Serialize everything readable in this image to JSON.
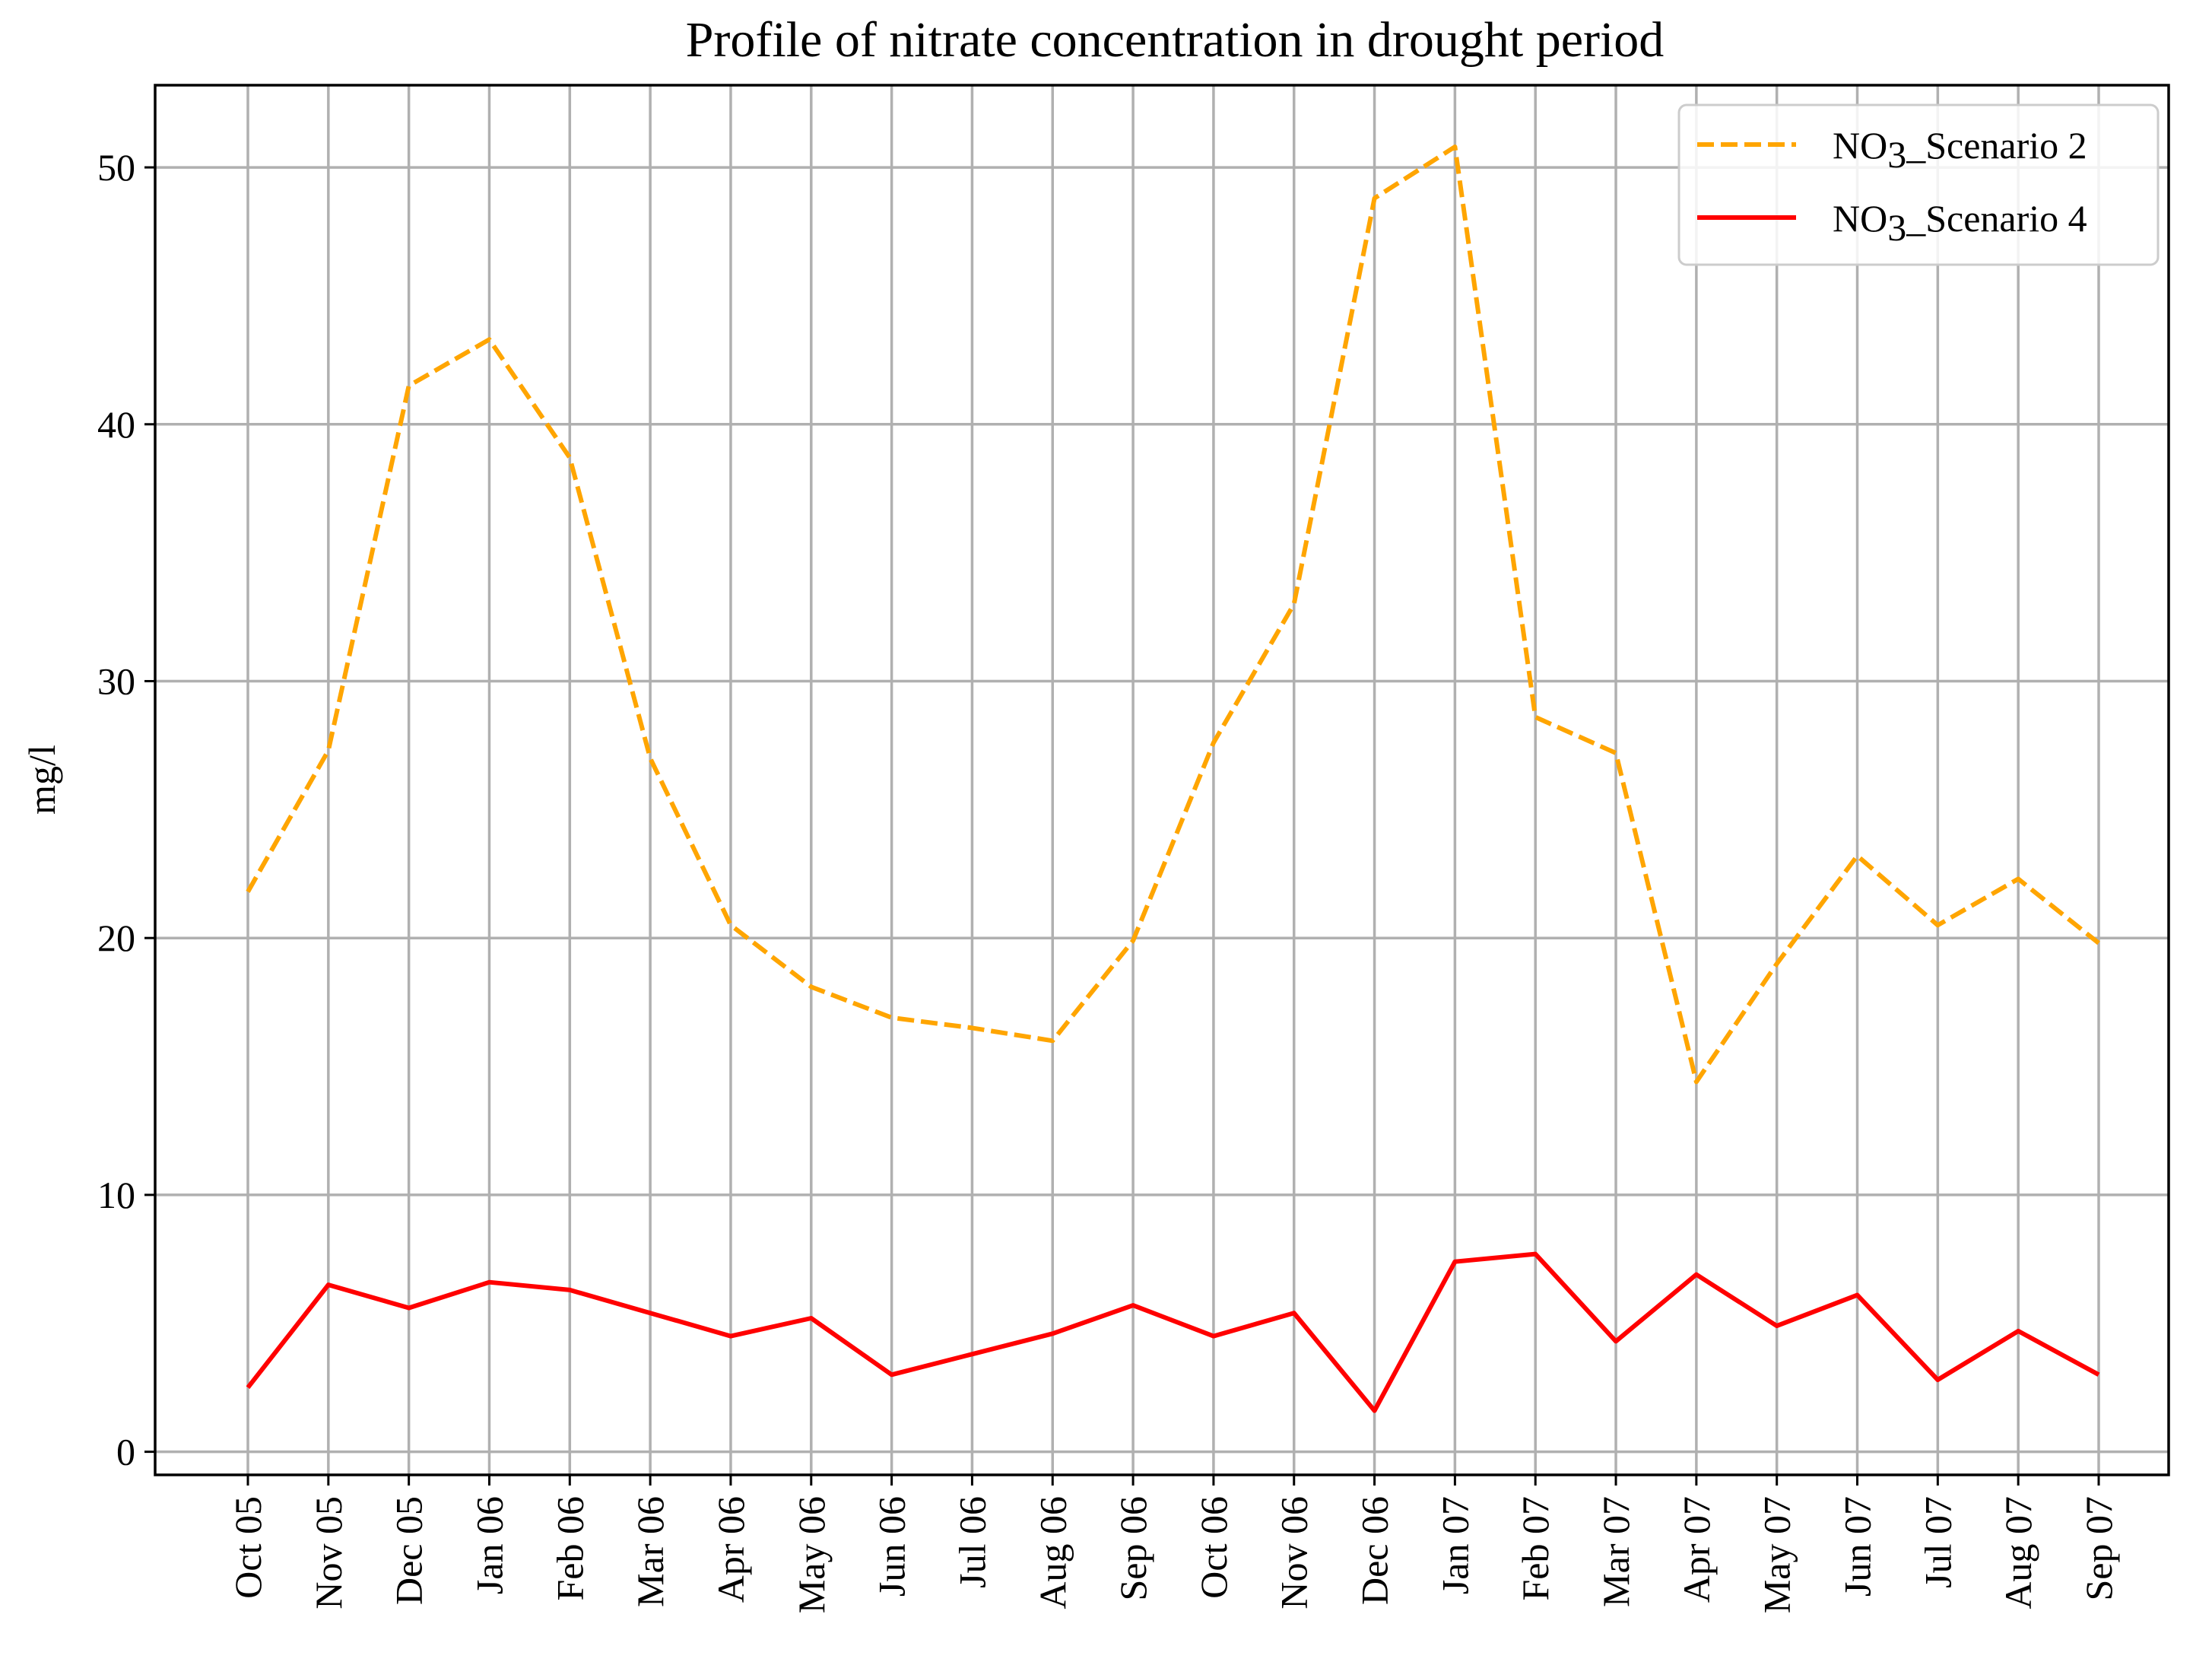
{
  "chart_data": {
    "type": "line",
    "title": "Profile of nitrate concentration in drought period",
    "xlabel": "",
    "ylabel": "mg/l",
    "categories": [
      "Oct 05",
      "Nov 05",
      "Dec 05",
      "Jan 06",
      "Feb 06",
      "Mar 06",
      "Apr 06",
      "May 06",
      "Jun 06",
      "Jul 06",
      "Aug 06",
      "Sep 06",
      "Oct 06",
      "Nov 06",
      "Dec 06",
      "Jan 07",
      "Feb 07",
      "Mar 07",
      "Apr 07",
      "May 07",
      "Jun 07",
      "Jul 07",
      "Aug 07",
      "Sep 07"
    ],
    "ylim": [
      -0.9,
      53.2
    ],
    "yticks": [
      0,
      10,
      20,
      30,
      40,
      50
    ],
    "grid": true,
    "legend_position": "top-right",
    "series": [
      {
        "name": "NO3_Scenario 2",
        "legend_prefix": "NO",
        "legend_subscript": "3",
        "legend_suffix": "_Scenario 2",
        "color": "#ffa500",
        "style": "dashed",
        "values": [
          21.8,
          27.3,
          41.5,
          43.3,
          38.7,
          27.0,
          20.5,
          18.1,
          16.9,
          16.5,
          16.0,
          19.9,
          27.6,
          33.0,
          48.8,
          50.8,
          28.6,
          27.2,
          14.4,
          19.0,
          23.2,
          20.5,
          22.3,
          19.8
        ]
      },
      {
        "name": "NO3_Scenario 4",
        "legend_prefix": "NO",
        "legend_subscript": "3",
        "legend_suffix": "_Scenario 4",
        "color": "#ff0000",
        "style": "solid",
        "values": [
          2.5,
          6.5,
          5.6,
          6.6,
          6.3,
          5.4,
          4.5,
          5.2,
          3.0,
          3.8,
          4.6,
          5.7,
          4.5,
          5.4,
          1.6,
          7.4,
          7.7,
          4.3,
          6.9,
          4.9,
          6.1,
          2.8,
          4.7,
          3.0
        ]
      }
    ]
  }
}
